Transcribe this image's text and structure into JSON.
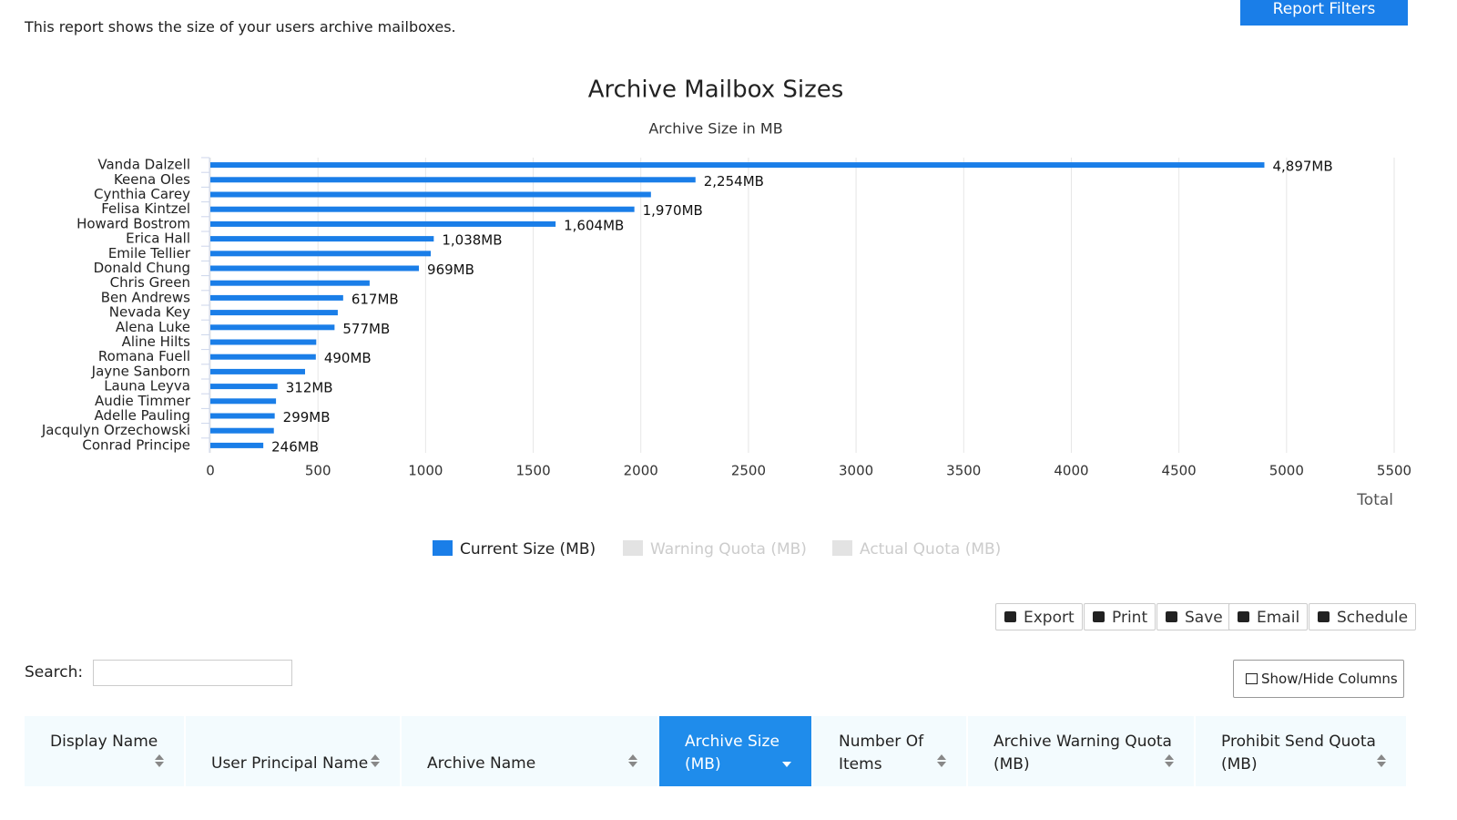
{
  "header": {
    "description": "This report shows the size of your users archive mailboxes.",
    "filter_button": "Report Filters"
  },
  "chart_data": {
    "type": "hbar",
    "title": "Archive Mailbox Sizes",
    "subtitle": "Archive Size in MB",
    "x_label": "Total",
    "categories": [
      "Vanda Dalzell",
      "Keena Oles",
      "Cynthia Carey",
      "Felisa Kintzel",
      "Howard Bostrom",
      "Erica Hall",
      "Emile Tellier",
      "Donald Chung",
      "Chris Green",
      "Ben Andrews",
      "Nevada Key",
      "Alena Luke",
      "Aline Hilts",
      "Romana Fuell",
      "Jayne Sanborn",
      "Launa Leyva",
      "Audie Timmer",
      "Adelle Pauling",
      "Jacqulyn Orzechowski",
      "Conrad Principe"
    ],
    "series": [
      {
        "name": "Current Size (MB)",
        "color": "#1a7ee8",
        "values": [
          4897,
          2254,
          2047,
          1970,
          1604,
          1038,
          1024,
          969,
          740,
          617,
          592,
          577,
          492,
          490,
          440,
          312,
          305,
          299,
          295,
          246
        ],
        "value_labels": [
          "4,897MB",
          "2,254MB",
          null,
          "1,970MB",
          "1,604MB",
          "1,038MB",
          null,
          "969MB",
          null,
          "617MB",
          null,
          "577MB",
          null,
          "490MB",
          null,
          "312MB",
          null,
          "299MB",
          null,
          "246MB"
        ]
      },
      {
        "name": "Warning Quota (MB)",
        "color": "#e3e3e3",
        "hidden": true
      },
      {
        "name": "Actual Quota (MB)",
        "color": "#e3e3e3",
        "hidden": true
      }
    ],
    "xlim": [
      0,
      5500
    ],
    "xticks": [
      0,
      500,
      1000,
      1500,
      2000,
      2500,
      3000,
      3500,
      4000,
      4500,
      5000,
      5500
    ],
    "grid": true
  },
  "toolbar": [
    "Export",
    "Print",
    "Save",
    "Email",
    "Schedule"
  ],
  "search_label": "Search:",
  "columns_button": "Show/Hide Columns",
  "table": {
    "columns": [
      "Display Name",
      "User Principal Name",
      "Archive Name",
      "Archive Size (MB)",
      "Number Of Items",
      "Archive Warning Quota (MB)",
      "Prohibit Send Quota (MB)"
    ],
    "sorted_column": 3
  }
}
